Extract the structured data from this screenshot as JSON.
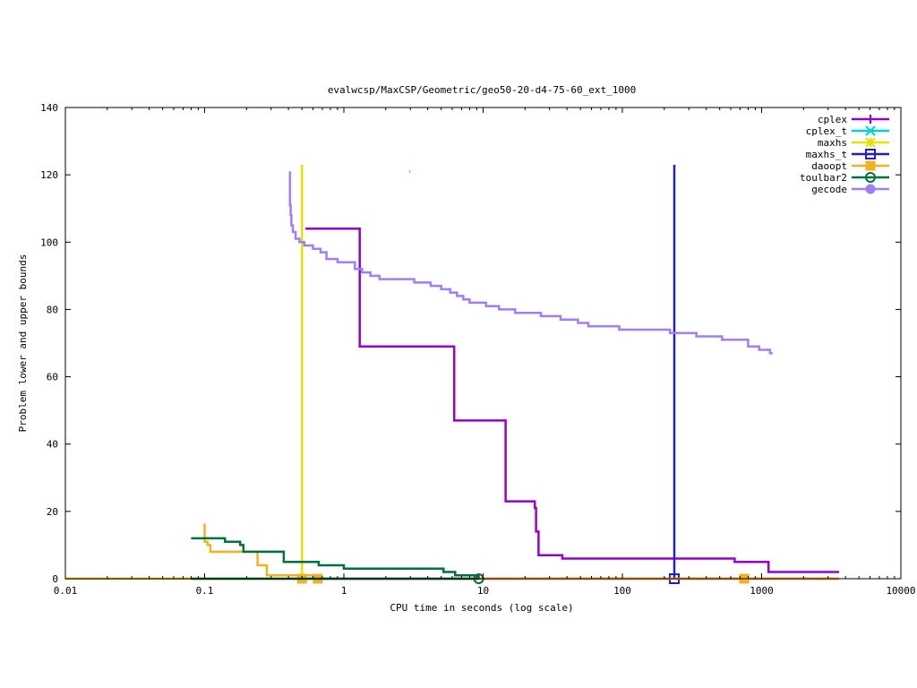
{
  "chart_data": {
    "type": "line",
    "title": "evalwcsp/MaxCSP/Geometric/geo50-20-d4-75-60_ext_1000",
    "xlabel": "CPU time in seconds (log scale)",
    "ylabel": "Problem lower and upper bounds",
    "xscale": "log",
    "xlim": [
      0.01,
      10000
    ],
    "ylim": [
      0,
      140
    ],
    "xticks": [
      0.01,
      0.1,
      1,
      10,
      100,
      1000,
      10000
    ],
    "xtick_labels": [
      "0.01",
      "0.1",
      "1",
      "10",
      "100",
      "1000",
      "10000"
    ],
    "yticks": [
      0,
      20,
      40,
      60,
      80,
      100,
      120,
      140
    ],
    "ytick_labels": [
      "0",
      "20",
      "40",
      "60",
      "80",
      "100",
      "120",
      "140"
    ],
    "legend_position": "top-right",
    "series": [
      {
        "name": "cplex",
        "color": "#9400d3",
        "marker": "plus",
        "markers": [],
        "segments": [
          [
            [
              0.53,
              104
            ],
            [
              1.3,
              104
            ],
            [
              1.3,
              69
            ],
            [
              6.2,
              69
            ],
            [
              6.2,
              47
            ],
            [
              14.5,
              47
            ],
            [
              14.5,
              23
            ],
            [
              23.5,
              23
            ],
            [
              23.5,
              21
            ],
            [
              24,
              21
            ],
            [
              24,
              14
            ],
            [
              25,
              14
            ],
            [
              25,
              7
            ],
            [
              37,
              7
            ],
            [
              37,
              6
            ],
            [
              640,
              6
            ],
            [
              640,
              5
            ],
            [
              1120,
              5
            ],
            [
              1120,
              2
            ],
            [
              3600,
              2
            ]
          ],
          [
            [
              0.5,
              0
            ],
            [
              3600,
              0
            ]
          ]
        ]
      },
      {
        "name": "cplex_t",
        "color": "#00d0d0",
        "marker": "cross",
        "markers": [],
        "segments": [
          [
            [
              2.95,
              121
            ],
            [
              3.0,
              121
            ]
          ]
        ]
      },
      {
        "name": "maxhs",
        "color": "#e8e000",
        "marker": "star",
        "markers": [
          [
            0.5,
            0
          ]
        ],
        "segments": [
          [
            [
              0.5,
              0
            ],
            [
              0.5,
              123
            ]
          ]
        ]
      },
      {
        "name": "maxhs_t",
        "color": "#2020c0",
        "marker": "square",
        "markers": [
          [
            236,
            0
          ]
        ],
        "segments": [
          [
            [
              236,
              0
            ],
            [
              236,
              123
            ]
          ]
        ]
      },
      {
        "name": "daoopt",
        "color": "#f5b120",
        "marker": "filled-square",
        "markers": [
          [
            0.5,
            0
          ],
          [
            0.65,
            0
          ],
          [
            750,
            0
          ]
        ],
        "segments": [
          [
            [
              0.098,
              16
            ],
            [
              0.1,
              16
            ],
            [
              0.1,
              11
            ],
            [
              0.105,
              11
            ],
            [
              0.105,
              10
            ],
            [
              0.11,
              10
            ],
            [
              0.11,
              8
            ],
            [
              0.24,
              8
            ],
            [
              0.24,
              4
            ],
            [
              0.28,
              4
            ],
            [
              0.28,
              1
            ],
            [
              0.6,
              1
            ],
            [
              0.6,
              0
            ]
          ],
          [
            [
              0.01,
              0
            ],
            [
              3600,
              0
            ]
          ]
        ]
      },
      {
        "name": "toulbar2",
        "color": "#007040",
        "marker": "circle",
        "markers": [
          [
            9.3,
            0
          ]
        ],
        "segments": [
          [
            [
              0.08,
              12
            ],
            [
              0.14,
              12
            ],
            [
              0.14,
              11
            ],
            [
              0.18,
              11
            ],
            [
              0.18,
              10
            ],
            [
              0.19,
              10
            ],
            [
              0.19,
              8
            ],
            [
              0.37,
              8
            ],
            [
              0.37,
              5
            ],
            [
              0.66,
              5
            ],
            [
              0.66,
              4
            ],
            [
              1.0,
              4
            ],
            [
              1.0,
              3
            ],
            [
              5.2,
              3
            ],
            [
              5.2,
              2
            ],
            [
              6.3,
              2
            ],
            [
              6.3,
              1
            ],
            [
              9.3,
              1
            ],
            [
              9.3,
              0
            ]
          ],
          [
            [
              0.08,
              0
            ],
            [
              9.3,
              0
            ]
          ]
        ]
      },
      {
        "name": "gecode",
        "color": "#9f7ff5",
        "marker": "filled-circle",
        "markers": [],
        "segments": [
          [
            [
              0.41,
              121
            ],
            [
              0.41,
              111
            ],
            [
              0.415,
              111
            ],
            [
              0.415,
              108
            ],
            [
              0.42,
              108
            ],
            [
              0.42,
              105
            ],
            [
              0.43,
              105
            ],
            [
              0.43,
              103
            ],
            [
              0.45,
              103
            ],
            [
              0.45,
              101
            ],
            [
              0.48,
              101
            ],
            [
              0.48,
              100
            ],
            [
              0.52,
              100
            ],
            [
              0.52,
              99
            ],
            [
              0.6,
              99
            ],
            [
              0.6,
              98
            ],
            [
              0.68,
              98
            ],
            [
              0.68,
              97
            ],
            [
              0.75,
              97
            ],
            [
              0.75,
              95
            ],
            [
              0.9,
              95
            ],
            [
              0.9,
              94
            ],
            [
              1.2,
              94
            ],
            [
              1.2,
              92
            ],
            [
              1.35,
              92
            ],
            [
              1.35,
              91
            ],
            [
              1.55,
              91
            ],
            [
              1.55,
              90
            ],
            [
              1.8,
              90
            ],
            [
              1.8,
              89
            ],
            [
              3.2,
              89
            ],
            [
              3.2,
              88
            ],
            [
              4.2,
              88
            ],
            [
              4.2,
              87
            ],
            [
              5.0,
              87
            ],
            [
              5.0,
              86
            ],
            [
              5.8,
              86
            ],
            [
              5.8,
              85
            ],
            [
              6.5,
              85
            ],
            [
              6.5,
              84
            ],
            [
              7.2,
              84
            ],
            [
              7.2,
              83
            ],
            [
              8.0,
              83
            ],
            [
              8.0,
              82
            ],
            [
              10.5,
              82
            ],
            [
              10.5,
              81
            ],
            [
              13,
              81
            ],
            [
              13,
              80
            ],
            [
              17,
              80
            ],
            [
              17,
              79
            ],
            [
              26,
              79
            ],
            [
              26,
              78
            ],
            [
              36,
              78
            ],
            [
              36,
              77
            ],
            [
              48,
              77
            ],
            [
              48,
              76
            ],
            [
              57,
              76
            ],
            [
              57,
              75
            ],
            [
              95,
              75
            ],
            [
              95,
              74
            ],
            [
              220,
              74
            ],
            [
              220,
              73
            ],
            [
              340,
              73
            ],
            [
              340,
              72
            ],
            [
              520,
              72
            ],
            [
              520,
              71
            ],
            [
              800,
              71
            ],
            [
              800,
              69
            ],
            [
              960,
              69
            ],
            [
              960,
              68
            ],
            [
              1150,
              68
            ],
            [
              1150,
              67
            ],
            [
              1200,
              67
            ]
          ]
        ]
      }
    ]
  }
}
